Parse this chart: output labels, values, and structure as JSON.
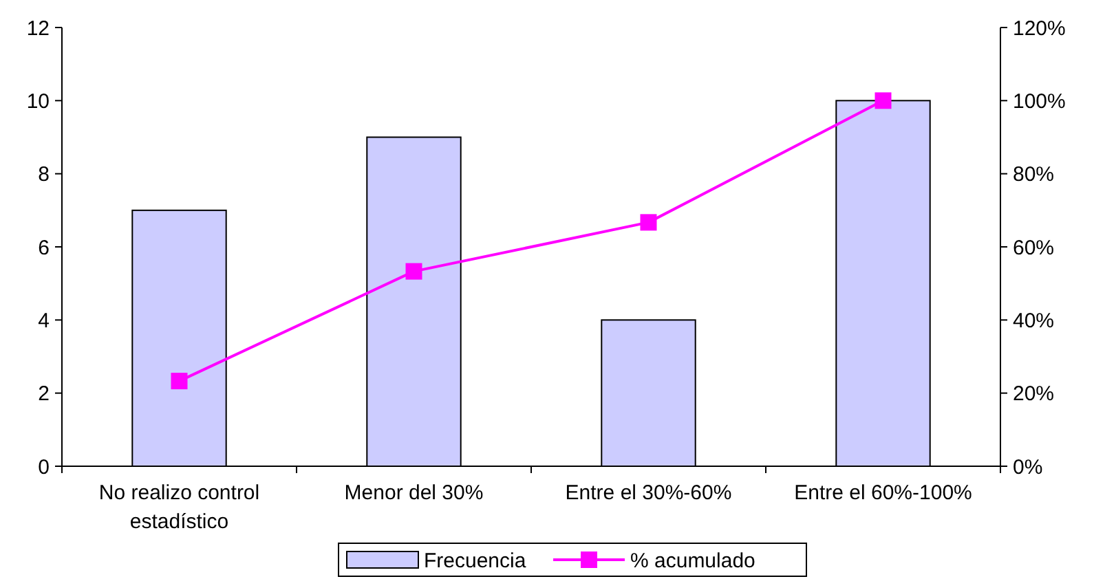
{
  "chart_data": {
    "type": "bar",
    "categories": [
      "No realizo control estadístico",
      "Menor del 30%",
      "Entre el 30%-60%",
      "Entre el 60%-100%"
    ],
    "series": [
      {
        "name": "Frecuencia",
        "color": "#ccccff",
        "values": [
          7,
          9,
          4,
          10
        ]
      },
      {
        "name": "% acumulado",
        "type": "line",
        "axis": "y2",
        "color": "#ff00ff",
        "marker": "square",
        "values": [
          23.3,
          53.3,
          66.7,
          100
        ]
      }
    ],
    "ylim": [
      0,
      12
    ],
    "yticks": [
      0,
      2,
      4,
      6,
      8,
      10,
      12
    ],
    "y2lim": [
      0,
      120
    ],
    "y2ticks": [
      {
        "value": 0,
        "label": "0%"
      },
      {
        "value": 20,
        "label": "20%"
      },
      {
        "value": 40,
        "label": "40%"
      },
      {
        "value": 60,
        "label": "60%"
      },
      {
        "value": 80,
        "label": "80%"
      },
      {
        "value": 100,
        "label": "100%"
      },
      {
        "value": 120,
        "label": "120%"
      }
    ],
    "grid": false,
    "legend": "bottom"
  }
}
